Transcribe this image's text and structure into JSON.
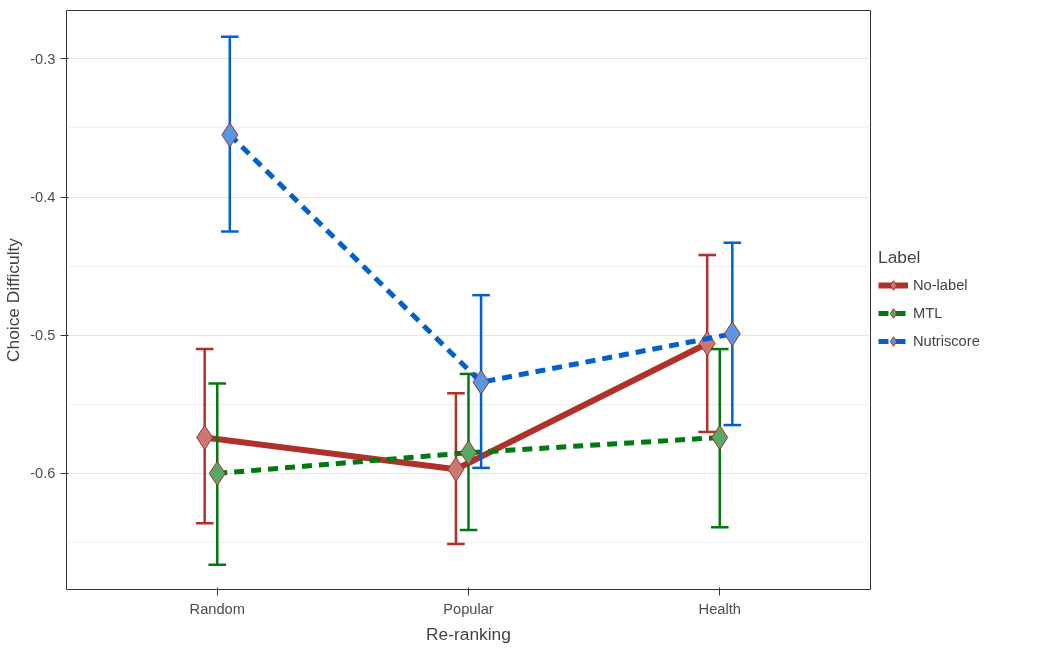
{
  "chart_data": {
    "type": "line",
    "xlabel": "Re-ranking",
    "ylabel": "Choice Difficulty",
    "legend_title": "Label",
    "categories": [
      "Random",
      "Popular",
      "Health"
    ],
    "series": [
      {
        "name": "No-label",
        "color": "#b0302a",
        "line_style": "solid",
        "values": [
          -0.574,
          -0.597,
          -0.506
        ],
        "errors": [
          [
            -0.636,
            -0.51
          ],
          [
            -0.651,
            -0.542
          ],
          [
            -0.57,
            -0.442
          ]
        ]
      },
      {
        "name": "MTL",
        "color": "#007a10",
        "line_style": "dashed",
        "values": [
          -0.6,
          -0.585,
          -0.574
        ],
        "errors": [
          [
            -0.666,
            -0.535
          ],
          [
            -0.641,
            -0.528
          ],
          [
            -0.639,
            -0.51
          ]
        ]
      },
      {
        "name": "Nutriscore",
        "color": "#0060d0",
        "line_style": "dashed",
        "values": [
          -0.355,
          -0.534,
          -0.499
        ],
        "errors": [
          [
            -0.425,
            -0.284
          ],
          [
            -0.596,
            -0.471
          ],
          [
            -0.565,
            -0.433
          ]
        ]
      }
    ],
    "ylim": [
      -0.684,
      -0.265
    ],
    "yticks": [
      -0.6,
      -0.5,
      -0.4,
      -0.3
    ],
    "grid": "y",
    "legend": "right",
    "marker": "diamond"
  }
}
